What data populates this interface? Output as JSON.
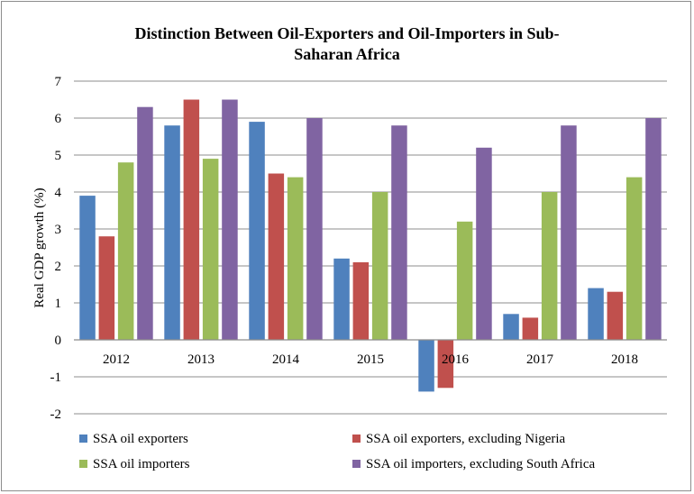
{
  "chart_data": {
    "type": "bar",
    "title_lines": [
      "Distinction Between Oil-Exporters and Oil-Importers in Sub-",
      "Saharan Africa"
    ],
    "ylabel": "Real  GDP growth (%)",
    "xlabel": "",
    "ylim": [
      -2,
      7
    ],
    "yticks": [
      -2,
      -1,
      0,
      1,
      2,
      3,
      4,
      5,
      6,
      7
    ],
    "grid": true,
    "legend_position": "bottom",
    "categories": [
      "2012",
      "2013",
      "2014",
      "2015",
      "2016",
      "2017",
      "2018"
    ],
    "series": [
      {
        "name": "SSA oil exporters",
        "color": "#4f81bd",
        "values": [
          3.9,
          5.8,
          5.9,
          2.2,
          -1.4,
          0.7,
          1.4
        ]
      },
      {
        "name": "SSA oil exporters, excluding Nigeria",
        "color": "#c0504d",
        "values": [
          2.8,
          6.5,
          4.5,
          2.1,
          -1.3,
          0.6,
          1.3
        ]
      },
      {
        "name": "SSA oil importers",
        "color": "#9bbb59",
        "values": [
          4.8,
          4.9,
          4.4,
          4.0,
          3.2,
          4.0,
          4.4
        ]
      },
      {
        "name": "SSA oil importers, excluding South Africa",
        "color": "#8064a2",
        "values": [
          6.3,
          6.5,
          6.0,
          5.8,
          5.2,
          5.8,
          6.0
        ]
      }
    ]
  }
}
